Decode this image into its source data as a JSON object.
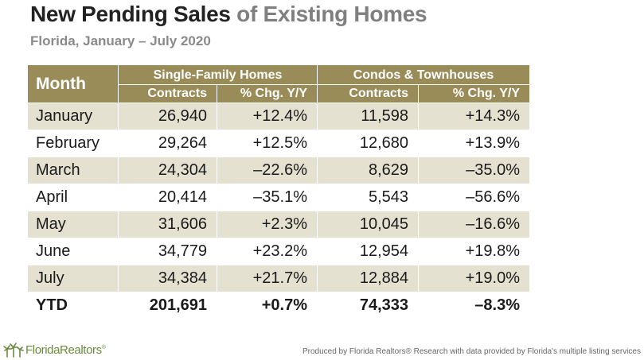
{
  "colors": {
    "header_bg": "#9a8c58",
    "band_row": "#e4e1d1",
    "title": "#222222",
    "title_accent": "#7f7f7f",
    "logo_green": "#6a8a3c"
  },
  "chart_data": {
    "type": "table",
    "title": "New Pending Sales",
    "title_accent": "of Existing Homes",
    "subtitle": "Florida, January – July 2020",
    "month_header": "Month",
    "groups": [
      "Single-Family Homes",
      "Condos & Townhouses"
    ],
    "subcolumns": [
      "Contracts",
      "% Chg. Y/Y",
      "Contracts",
      "% Chg. Y/Y"
    ],
    "rows": [
      {
        "month": "January",
        "sf_contracts": "26,940",
        "sf_chg": "+12.4%",
        "ct_contracts": "11,598",
        "ct_chg": "+14.3%"
      },
      {
        "month": "February",
        "sf_contracts": "29,264",
        "sf_chg": "+12.5%",
        "ct_contracts": "12,680",
        "ct_chg": "+13.9%"
      },
      {
        "month": "March",
        "sf_contracts": "24,304",
        "sf_chg": "–22.6%",
        "ct_contracts": "8,629",
        "ct_chg": "–35.0%"
      },
      {
        "month": "April",
        "sf_contracts": "20,414",
        "sf_chg": "–35.1%",
        "ct_contracts": "5,543",
        "ct_chg": "–56.6%"
      },
      {
        "month": "May",
        "sf_contracts": "31,606",
        "sf_chg": "+2.3%",
        "ct_contracts": "10,045",
        "ct_chg": "–16.6%"
      },
      {
        "month": "June",
        "sf_contracts": "34,779",
        "sf_chg": "+23.2%",
        "ct_contracts": "12,954",
        "ct_chg": "+19.8%"
      },
      {
        "month": "July",
        "sf_contracts": "34,384",
        "sf_chg": "+21.7%",
        "ct_contracts": "12,884",
        "ct_chg": "+19.0%"
      },
      {
        "month": "YTD",
        "sf_contracts": "201,691",
        "sf_chg": "+0.7%",
        "ct_contracts": "74,333",
        "ct_chg": "–8.3%"
      }
    ]
  },
  "footer": {
    "logo_text": "FloridaRealtors",
    "logo_mark": "®",
    "credit": "Produced by Florida Realtors® Research with data provided by Florida's multiple listing services"
  }
}
